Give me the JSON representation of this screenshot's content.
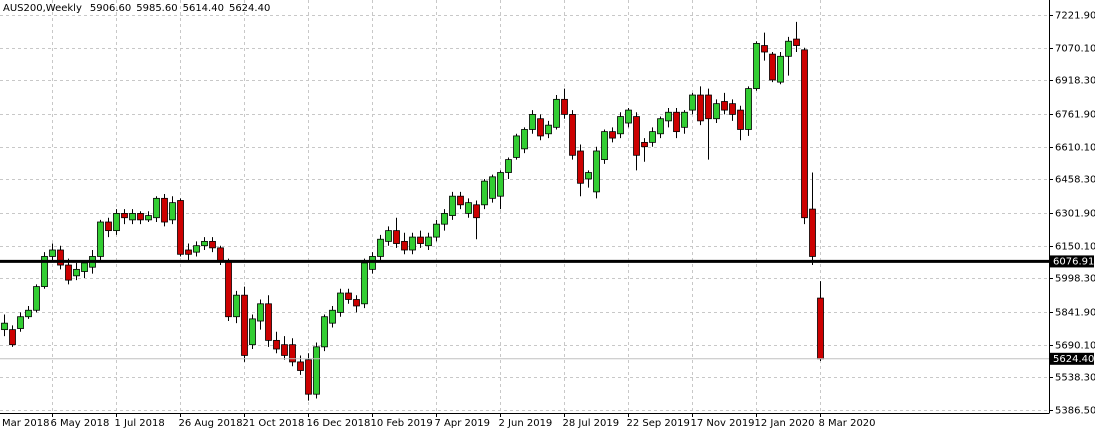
{
  "chart_data": {
    "type": "candlestick",
    "title": "AUS200,Weekly",
    "info_values": [
      {
        "value": 5906.6,
        "label": "5906.60"
      },
      {
        "value": 5985.6,
        "label": "5985.60"
      },
      {
        "value": 5614.4,
        "label": "5614.40"
      },
      {
        "value": 5624.4,
        "label": "5624.40"
      }
    ],
    "x": [
      "Mar 2018",
      null,
      null,
      null,
      null,
      null,
      null,
      null,
      "6 May 2018",
      null,
      null,
      null,
      null,
      null,
      null,
      null,
      "1 Jul 2018",
      null,
      null,
      null,
      null,
      null,
      null,
      null,
      "26 Aug 2018",
      null,
      null,
      null,
      null,
      null,
      null,
      null,
      "21 Oct 2018",
      null,
      null,
      null,
      null,
      null,
      null,
      null,
      "16 Dec 2018",
      null,
      null,
      null,
      null,
      null,
      null,
      null,
      "10 Feb 2019",
      null,
      null,
      null,
      null,
      null,
      null,
      null,
      "7 Apr 2019",
      null,
      null,
      null,
      null,
      null,
      null,
      null,
      "2 Jun 2019",
      null,
      null,
      null,
      null,
      null,
      null,
      null,
      "28 Jul 2019",
      null,
      null,
      null,
      null,
      null,
      null,
      null,
      "22 Sep 2019",
      null,
      null,
      null,
      null,
      null,
      null,
      null,
      "17 Nov 2019",
      null,
      null,
      null,
      null,
      null,
      null,
      null,
      "12 Jan 2020",
      null,
      null,
      null,
      null,
      null,
      null,
      null,
      "8 Mar 2020"
    ],
    "open": [
      null,
      null,
      5760,
      5760,
      5765,
      5820,
      5850,
      5960,
      6100,
      6130,
      6060,
      6010,
      6030,
      6050,
      6100,
      6260,
      6220,
      6300,
      6270,
      6300,
      6270,
      6280,
      6370,
      6270,
      6360,
      6130,
      6120,
      6150,
      6170,
      6140,
      6080,
      5820,
      5920,
      5690,
      5800,
      5880,
      5710,
      5690,
      5690,
      5610,
      5620,
      5460,
      5680,
      5790,
      5840,
      5930,
      5900,
      5880,
      6040,
      6100,
      6170,
      6220,
      6170,
      6130,
      6190,
      6150,
      6190,
      6250,
      6290,
      6380,
      6300,
      6340,
      6340,
      6370,
      6380,
      6490,
      6560,
      6600,
      6690,
      6740,
      6670,
      6700,
      6830,
      6760,
      6590,
      6460,
      6400,
      6550,
      6680,
      6670,
      6720,
      6750,
      6630,
      6630,
      6670,
      6730,
      6770,
      6700,
      6780,
      6850,
      6850,
      6740,
      6820,
      6810,
      6780,
      6690,
      6880,
      7080,
      7040,
      6910,
      7030,
      7110,
      7060,
      6320,
      5906.6
    ],
    "high": [
      null,
      null,
      5830,
      5780,
      5840,
      5870,
      5970,
      6120,
      6160,
      6150,
      6090,
      6070,
      6080,
      6130,
      6270,
      6280,
      6320,
      6320,
      6320,
      6310,
      6310,
      6380,
      6390,
      6380,
      6370,
      6160,
      6170,
      6190,
      6190,
      6150,
      6090,
      5940,
      5960,
      5830,
      5900,
      5920,
      5750,
      5730,
      5720,
      5640,
      5650,
      5700,
      5830,
      5870,
      5950,
      5950,
      5920,
      6090,
      6120,
      6200,
      6240,
      6280,
      6210,
      6210,
      6220,
      6210,
      6270,
      6320,
      6400,
      6400,
      6370,
      6360,
      6460,
      6480,
      6500,
      6560,
      6670,
      6700,
      6780,
      6760,
      6730,
      6850,
      6880,
      6780,
      6620,
      6500,
      6610,
      6690,
      6700,
      6770,
      6790,
      6770,
      6650,
      6700,
      6750,
      6790,
      6790,
      6780,
      6860,
      6890,
      6880,
      6830,
      6860,
      6830,
      6800,
      6890,
      7100,
      7140,
      7050,
      7050,
      7120,
      7190,
      7070,
      6490,
      5985.6
    ],
    "low": [
      null,
      null,
      5730,
      5680,
      5750,
      5810,
      5840,
      5950,
      6080,
      6040,
      5970,
      5990,
      6000,
      6020,
      6080,
      6190,
      6200,
      6250,
      6250,
      6250,
      6260,
      6260,
      6240,
      6250,
      6100,
      6080,
      6100,
      6130,
      6120,
      6060,
      5800,
      5790,
      5610,
      5670,
      5760,
      5680,
      5650,
      5620,
      5590,
      5550,
      5430,
      5440,
      5660,
      5770,
      5820,
      5880,
      5840,
      5860,
      6020,
      6080,
      6150,
      6140,
      6110,
      6110,
      6140,
      6130,
      6170,
      6220,
      6270,
      6320,
      6280,
      6180,
      6320,
      6350,
      6320,
      6460,
      6550,
      6580,
      6670,
      6640,
      6650,
      6690,
      6740,
      6550,
      6380,
      6420,
      6370,
      6530,
      6630,
      6650,
      6700,
      6500,
      6540,
      6610,
      6650,
      6700,
      6650,
      6670,
      6760,
      6710,
      6550,
      6720,
      6760,
      6730,
      6640,
      6660,
      6870,
      7010,
      6910,
      6900,
      6940,
      7050,
      6250,
      6060,
      5614.4
    ],
    "close": [
      null,
      null,
      5790,
      5690,
      5820,
      5850,
      5960,
      6100,
      6130,
      6060,
      5990,
      6040,
      6070,
      6100,
      6260,
      6220,
      6300,
      6280,
      6300,
      6270,
      6290,
      6370,
      6260,
      6350,
      6110,
      6110,
      6150,
      6170,
      6140,
      6080,
      5820,
      5920,
      5640,
      5810,
      5880,
      5710,
      5670,
      5640,
      5610,
      5570,
      5460,
      5680,
      5820,
      5850,
      5930,
      5900,
      5870,
      6070,
      6100,
      6180,
      6220,
      6160,
      6130,
      6190,
      6160,
      6190,
      6250,
      6300,
      6380,
      6340,
      6350,
      6280,
      6450,
      6470,
      6490,
      6550,
      6660,
      6690,
      6760,
      6660,
      6710,
      6830,
      6760,
      6570,
      6440,
      6490,
      6590,
      6680,
      6650,
      6750,
      6780,
      6570,
      6610,
      6680,
      6740,
      6770,
      6680,
      6770,
      6850,
      6730,
      6740,
      6810,
      6780,
      6760,
      6690,
      6880,
      7090,
      7050,
      6920,
      7030,
      7100,
      7080,
      6280,
      6100,
      5624.4
    ],
    "up_color": "#32cd32",
    "down_color": "#cc0000",
    "ylim": [
      5372.6,
      7291.6
    ],
    "yticks": [
      {
        "value": 5386.5,
        "label": "5386.50"
      },
      {
        "value": 5538.3,
        "label": "5538.30"
      },
      {
        "value": 5690.1,
        "label": "5690.10"
      },
      {
        "value": 5841.9,
        "label": "5841.90"
      },
      {
        "value": 5998.3,
        "label": "5998.30"
      },
      {
        "value": 6150.1,
        "label": "6150.10"
      },
      {
        "value": 6301.9,
        "label": "6301.90"
      },
      {
        "value": 6458.3,
        "label": "6458.30"
      },
      {
        "value": 6610.1,
        "label": "6610.10"
      },
      {
        "value": 6761.9,
        "label": "6761.90"
      },
      {
        "value": 6918.3,
        "label": "6918.30"
      },
      {
        "value": 7070.1,
        "label": "7070.10"
      },
      {
        "value": 7221.9,
        "label": "7221.90"
      }
    ],
    "level_line": 6076.91,
    "price_line": {
      "value": 5624.4,
      "label": "5624.40"
    },
    "grid": true
  }
}
